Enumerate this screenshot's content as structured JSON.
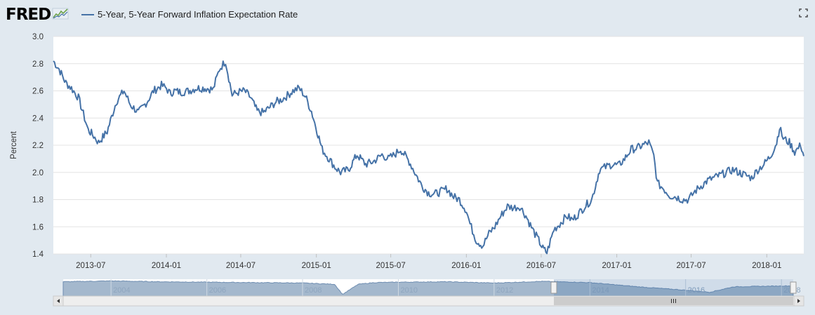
{
  "brand": {
    "name": "FRED",
    "logo_icon": "fred-line-chart-icon"
  },
  "chart_data": {
    "type": "line",
    "title": "5-Year, 5-Year Forward Inflation Expectation Rate",
    "xlabel": "",
    "ylabel": "Percent",
    "ylim": [
      1.4,
      3.0
    ],
    "yticks": [
      "1.4",
      "1.6",
      "1.8",
      "2.0",
      "2.2",
      "2.4",
      "2.6",
      "2.8",
      "3.0"
    ],
    "xrange": [
      "2013-04-01",
      "2018-04-01"
    ],
    "xticks": [
      "2013-07",
      "2014-01",
      "2014-07",
      "2015-01",
      "2015-07",
      "2016-01",
      "2016-07",
      "2017-01",
      "2017-07",
      "2018-01"
    ],
    "grid": true,
    "legend_position": "top-left",
    "series": [
      {
        "name": "5-Year, 5-Year Forward Inflation Expectation Rate",
        "color": "#4572a7",
        "x": [
          "2013-04-01",
          "2013-04-15",
          "2013-05-01",
          "2013-05-15",
          "2013-06-01",
          "2013-06-10",
          "2013-06-25",
          "2013-07-05",
          "2013-07-20",
          "2013-08-10",
          "2013-09-01",
          "2013-09-20",
          "2013-10-05",
          "2013-10-25",
          "2013-11-15",
          "2013-12-01",
          "2013-12-20",
          "2014-01-01",
          "2014-01-10",
          "2014-01-20",
          "2014-02-05",
          "2014-02-25",
          "2014-03-15",
          "2014-04-05",
          "2014-04-25",
          "2014-05-10",
          "2014-05-25",
          "2014-06-10",
          "2014-06-25",
          "2014-07-10",
          "2014-07-25",
          "2014-08-10",
          "2014-08-25",
          "2014-09-10",
          "2014-09-25",
          "2014-10-05",
          "2014-10-20",
          "2014-11-05",
          "2014-11-20",
          "2014-12-05",
          "2014-12-20",
          "2015-01-05",
          "2015-01-15",
          "2015-02-01",
          "2015-02-15",
          "2015-03-01",
          "2015-03-20",
          "2015-04-10",
          "2015-05-01",
          "2015-05-20",
          "2015-06-10",
          "2015-06-25",
          "2015-07-10",
          "2015-07-25",
          "2015-08-15",
          "2015-09-01",
          "2015-09-15",
          "2015-10-01",
          "2015-10-15",
          "2015-11-01",
          "2015-11-15",
          "2015-12-01",
          "2015-12-15",
          "2016-01-01",
          "2016-01-10",
          "2016-01-25",
          "2016-02-10",
          "2016-02-25",
          "2016-03-10",
          "2016-03-25",
          "2016-04-10",
          "2016-04-25",
          "2016-05-10",
          "2016-05-25",
          "2016-06-10",
          "2016-06-25",
          "2016-07-05",
          "2016-07-15",
          "2016-08-01",
          "2016-08-15",
          "2016-09-01",
          "2016-09-15",
          "2016-10-01",
          "2016-10-15",
          "2016-11-01",
          "2016-11-10",
          "2016-11-20",
          "2016-12-05",
          "2016-12-20",
          "2017-01-05",
          "2017-01-20",
          "2017-02-05",
          "2017-02-20",
          "2017-03-05",
          "2017-03-20",
          "2017-04-01",
          "2017-04-10",
          "2017-04-25",
          "2017-05-10",
          "2017-05-25",
          "2017-06-10",
          "2017-06-25",
          "2017-07-10",
          "2017-07-25",
          "2017-08-10",
          "2017-08-25",
          "2017-09-10",
          "2017-09-25",
          "2017-10-10",
          "2017-10-25",
          "2017-11-10",
          "2017-11-25",
          "2017-12-10",
          "2017-12-25",
          "2018-01-10",
          "2018-01-25",
          "2018-02-01",
          "2018-02-10",
          "2018-02-25",
          "2018-03-10",
          "2018-03-25",
          "2018-04-01"
        ],
        "values": [
          2.82,
          2.76,
          2.66,
          2.62,
          2.55,
          2.46,
          2.31,
          2.28,
          2.22,
          2.3,
          2.52,
          2.6,
          2.5,
          2.44,
          2.52,
          2.6,
          2.64,
          2.62,
          2.58,
          2.6,
          2.59,
          2.6,
          2.62,
          2.62,
          2.61,
          2.76,
          2.82,
          2.57,
          2.59,
          2.6,
          2.55,
          2.45,
          2.44,
          2.48,
          2.52,
          2.53,
          2.56,
          2.6,
          2.62,
          2.56,
          2.45,
          2.28,
          2.17,
          2.1,
          2.04,
          2.0,
          2.02,
          2.13,
          2.06,
          2.08,
          2.13,
          2.1,
          2.13,
          2.17,
          2.08,
          1.98,
          1.9,
          1.85,
          1.84,
          1.86,
          1.88,
          1.82,
          1.8,
          1.72,
          1.62,
          1.5,
          1.46,
          1.55,
          1.6,
          1.68,
          1.75,
          1.74,
          1.75,
          1.68,
          1.58,
          1.5,
          1.44,
          1.41,
          1.58,
          1.62,
          1.68,
          1.65,
          1.7,
          1.75,
          1.8,
          1.9,
          2.02,
          2.04,
          2.06,
          2.05,
          2.1,
          2.17,
          2.18,
          2.2,
          2.22,
          2.12,
          1.92,
          1.88,
          1.83,
          1.82,
          1.8,
          1.8,
          1.86,
          1.9,
          1.94,
          1.96,
          1.98,
          2.0,
          2.02,
          2.0,
          1.98,
          1.96,
          2.02,
          2.06,
          2.12,
          2.22,
          2.33,
          2.25,
          2.22,
          2.15,
          2.2,
          2.12
        ]
      }
    ]
  },
  "navigator": {
    "labels": [
      "2004",
      "2006",
      "2008",
      "2010",
      "2012",
      "2014",
      "2016",
      "2018"
    ],
    "xrange": [
      "2003-01-01",
      "2018-04-01"
    ],
    "selection": [
      "2013-04-01",
      "2018-04-01"
    ],
    "x": [
      "2003-01-01",
      "2004-01-01",
      "2005-01-01",
      "2006-01-01",
      "2007-01-01",
      "2008-01-01",
      "2008-09-01",
      "2008-11-01",
      "2009-03-01",
      "2009-07-01",
      "2010-01-01",
      "2011-01-01",
      "2012-01-01",
      "2013-01-01",
      "2014-01-01",
      "2015-01-01",
      "2016-01-01",
      "2016-07-01",
      "2017-01-01",
      "2018-01-01",
      "2018-04-01"
    ],
    "values": [
      2.7,
      2.8,
      2.7,
      2.65,
      2.6,
      2.55,
      2.4,
      1.2,
      2.4,
      2.6,
      2.65,
      2.7,
      2.55,
      2.75,
      2.6,
      2.1,
      1.7,
      1.45,
      2.1,
      2.2,
      2.2
    ]
  }
}
